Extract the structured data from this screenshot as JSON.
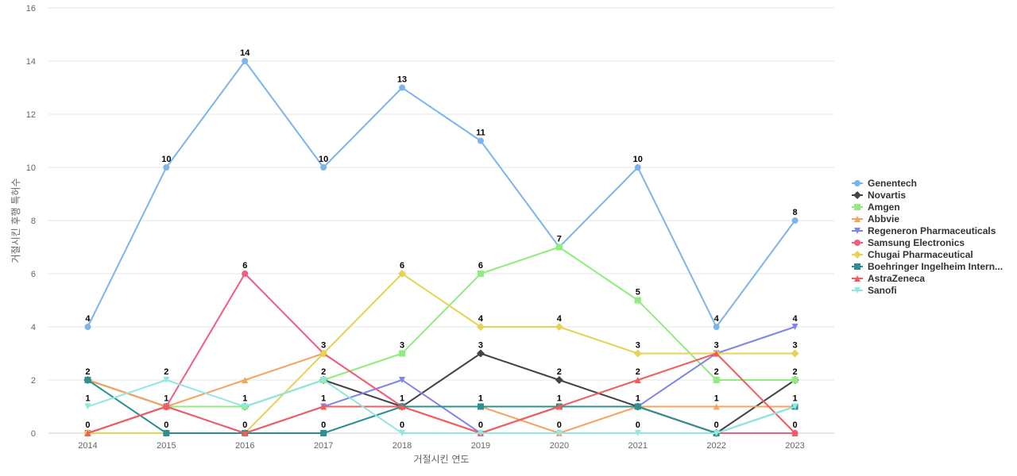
{
  "chart_data": {
    "type": "line",
    "xlabel": "거절시킨 연도",
    "ylabel": "거절시킨 후행 특허수",
    "x": [
      "2014",
      "2015",
      "2016",
      "2017",
      "2018",
      "2019",
      "2020",
      "2021",
      "2022",
      "2023"
    ],
    "ylim": [
      0,
      16
    ],
    "yticks": [
      0,
      2,
      4,
      6,
      8,
      10,
      12,
      14,
      16
    ],
    "grid": true,
    "legend_position": "right",
    "series": [
      {
        "name": "Genentech",
        "color": "#7cb5ec",
        "marker": "circle",
        "values": [
          4,
          10,
          14,
          10,
          13,
          11,
          7,
          10,
          4,
          8
        ]
      },
      {
        "name": "Novartis",
        "color": "#434348",
        "marker": "diamond",
        "values": [
          2,
          1,
          1,
          2,
          1,
          3,
          2,
          1,
          0,
          2
        ]
      },
      {
        "name": "Amgen",
        "color": "#90ed7d",
        "marker": "square",
        "values": [
          0,
          1,
          1,
          2,
          3,
          6,
          7,
          5,
          2,
          2
        ]
      },
      {
        "name": "Abbvie",
        "color": "#f7a35c",
        "marker": "triangle",
        "values": [
          2,
          1,
          2,
          3,
          1,
          1,
          0,
          1,
          1,
          1
        ]
      },
      {
        "name": "Regeneron Pharmaceuticals",
        "color": "#8085e9",
        "marker": "triangle-down",
        "values": [
          0,
          1,
          0,
          1,
          2,
          0,
          1,
          1,
          3,
          4
        ]
      },
      {
        "name": "Samsung Electronics",
        "color": "#f15c80",
        "marker": "circle",
        "values": [
          0,
          1,
          6,
          3,
          1,
          0,
          1,
          1,
          0,
          0
        ]
      },
      {
        "name": "Chugai Pharmaceutical",
        "color": "#e4d354",
        "marker": "diamond",
        "values": [
          0,
          0,
          0,
          3,
          6,
          4,
          4,
          3,
          3,
          3
        ]
      },
      {
        "name": "Boehringer Ingelheim Intern...",
        "color": "#2b908f",
        "marker": "square",
        "values": [
          2,
          0,
          0,
          0,
          1,
          1,
          1,
          1,
          0,
          1
        ]
      },
      {
        "name": "AstraZeneca",
        "color": "#f45b5b",
        "marker": "triangle",
        "values": [
          0,
          1,
          0,
          1,
          1,
          0,
          1,
          2,
          3,
          0
        ]
      },
      {
        "name": "Sanofi",
        "color": "#91e8e1",
        "marker": "triangle-down",
        "values": [
          1,
          2,
          1,
          2,
          0,
          0,
          0,
          0,
          0,
          1
        ]
      }
    ],
    "data_labels": {
      "Genentech": [
        4,
        10,
        14,
        10,
        13,
        11,
        7,
        10,
        4,
        8
      ],
      "top_secondary": [
        2,
        2,
        6,
        3,
        6,
        6,
        4,
        5,
        3,
        4
      ],
      "third": [
        null,
        null,
        null,
        null,
        null,
        4,
        null,
        3,
        null,
        3
      ],
      "fourth": [
        null,
        null,
        null,
        2,
        3,
        3,
        2,
        2,
        2,
        2
      ],
      "one_row": [
        1,
        1,
        1,
        1,
        1,
        1,
        1,
        1,
        1,
        1
      ],
      "zero_row": [
        0,
        0,
        0,
        0,
        0,
        0,
        0,
        0,
        0,
        0
      ]
    }
  }
}
